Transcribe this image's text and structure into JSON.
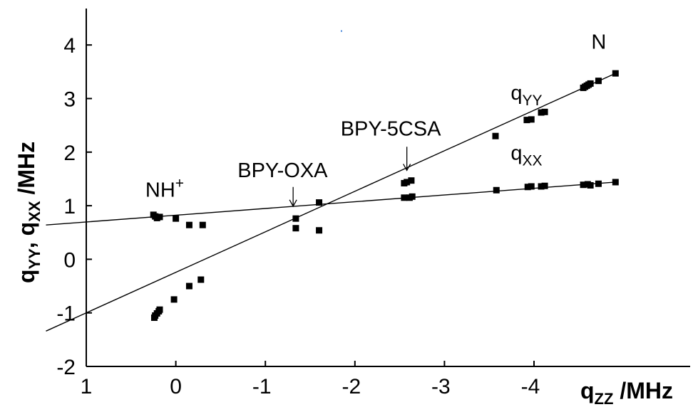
{
  "chart_data": {
    "type": "scatter",
    "x_axis_reversed": true,
    "xlim": [
      1,
      -4.75
    ],
    "ylim": [
      -2,
      4.6
    ],
    "x_ticks": [
      1,
      0,
      -1,
      -2,
      -3,
      -4
    ],
    "x_tick_labels": [
      "1",
      "0",
      "-1",
      "-2",
      "-3",
      "-4"
    ],
    "y_ticks": [
      -2,
      -1,
      0,
      1,
      2,
      3,
      4
    ],
    "y_tick_labels": [
      "-2",
      "-1",
      "0",
      "1",
      "2",
      "3",
      "4"
    ],
    "xlabel": {
      "main": "q",
      "sub": "ZZ",
      "rest": " /MHz"
    },
    "ylabel": {
      "q1": "q",
      "sub1": "YY",
      "sep": ", q",
      "sub2": "XX",
      "rest": " /MHz"
    },
    "grid": false,
    "colors": {
      "marker": "#000000",
      "line": "#000000",
      "stray_mark": "#3b7dd8"
    },
    "series": [
      {
        "name": "qYY",
        "points": [
          [
            0.24,
            -1.09
          ],
          [
            0.23,
            -1.05
          ],
          [
            0.21,
            -1.01
          ],
          [
            0.19,
            -0.97
          ],
          [
            0.18,
            -0.94
          ],
          [
            0.02,
            -0.75
          ],
          [
            -0.15,
            -0.5
          ],
          [
            -0.28,
            -0.38
          ],
          [
            -1.34,
            0.58
          ],
          [
            -1.6,
            0.54
          ],
          [
            -2.55,
            1.42
          ],
          [
            -2.58,
            1.44
          ],
          [
            -2.63,
            1.47
          ],
          [
            -3.57,
            2.3
          ],
          [
            -3.92,
            2.6
          ],
          [
            -3.97,
            2.61
          ],
          [
            -4.08,
            2.74
          ],
          [
            -4.12,
            2.75
          ],
          [
            -4.55,
            3.2
          ],
          [
            -4.57,
            3.22
          ],
          [
            -4.59,
            3.24
          ],
          [
            -4.61,
            3.26
          ],
          [
            -4.63,
            3.28
          ],
          [
            -4.72,
            3.33
          ],
          [
            -4.91,
            3.47
          ]
        ],
        "fit": {
          "x1": 1.45,
          "y1": -1.34,
          "x2": -4.91,
          "y2": 3.47
        }
      },
      {
        "name": "qXX",
        "points": [
          [
            0.25,
            0.83
          ],
          [
            0.23,
            0.8
          ],
          [
            0.21,
            0.77
          ],
          [
            0.18,
            0.79
          ],
          [
            0.0,
            0.76
          ],
          [
            -0.15,
            0.64
          ],
          [
            -0.3,
            0.64
          ],
          [
            -1.34,
            0.76
          ],
          [
            -1.6,
            1.06
          ],
          [
            -2.55,
            1.15
          ],
          [
            -2.61,
            1.15
          ],
          [
            -2.64,
            1.17
          ],
          [
            -3.58,
            1.29
          ],
          [
            -3.93,
            1.35
          ],
          [
            -3.97,
            1.36
          ],
          [
            -4.08,
            1.36
          ],
          [
            -4.12,
            1.37
          ],
          [
            -4.55,
            1.39
          ],
          [
            -4.6,
            1.4
          ],
          [
            -4.63,
            1.38
          ],
          [
            -4.72,
            1.41
          ],
          [
            -4.91,
            1.44
          ]
        ],
        "fit": {
          "x1": 1.45,
          "y1": 0.64,
          "x2": -4.91,
          "y2": 1.44
        }
      }
    ],
    "annotations": [
      {
        "main": "NH",
        "sup": "+",
        "x": 0.34,
        "y": 1.17
      },
      {
        "main": "BPY-OXA",
        "x": -0.69,
        "y": 1.53
      },
      {
        "main": "BPY-5CSA",
        "x": -1.84,
        "y": 2.31
      },
      {
        "main": "q",
        "sub": "YY",
        "x": -3.74,
        "y": 2.98
      },
      {
        "main": "q",
        "sub": "XX",
        "x": -3.74,
        "y": 1.86
      },
      {
        "main": "N",
        "x": -4.64,
        "y": 3.93
      }
    ],
    "arrows": [
      {
        "x": -1.31,
        "y_from": 1.35,
        "y_to": 0.99
      },
      {
        "x": -2.58,
        "y_from": 2.1,
        "y_to": 1.66
      }
    ],
    "stray_mark": {
      "x": -1.85,
      "y": 4.26
    }
  }
}
